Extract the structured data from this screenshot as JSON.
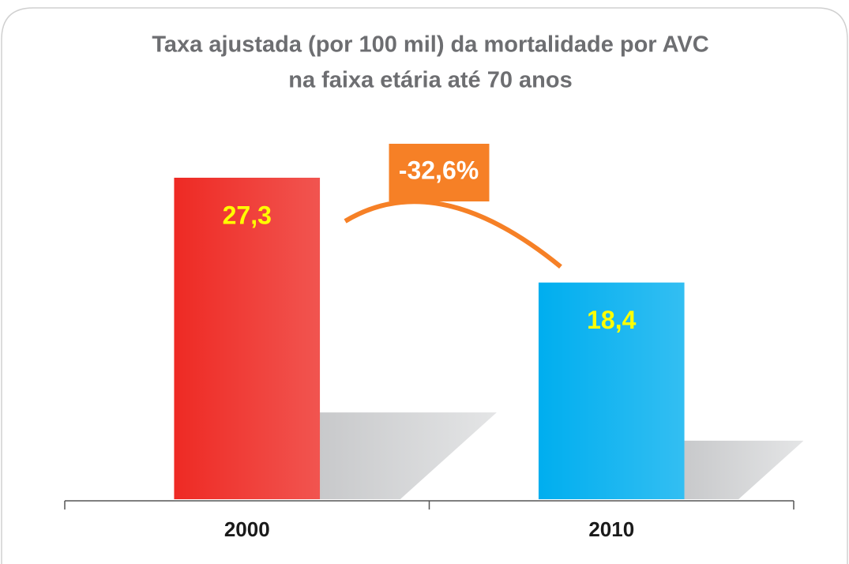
{
  "chart_data": {
    "type": "bar",
    "title": [
      "Taxa ajustada (por 100 mil) da mortalidade por AVC",
      "na faixa etária até 70 anos"
    ],
    "categories": [
      "2000",
      "2010"
    ],
    "values": [
      27.3,
      18.4
    ],
    "value_labels": [
      "27,3",
      "18,4"
    ],
    "colors": [
      "#ee2a24",
      "#00aeef"
    ],
    "annotation": "-32,6%",
    "annotation_color": "#f68026"
  }
}
